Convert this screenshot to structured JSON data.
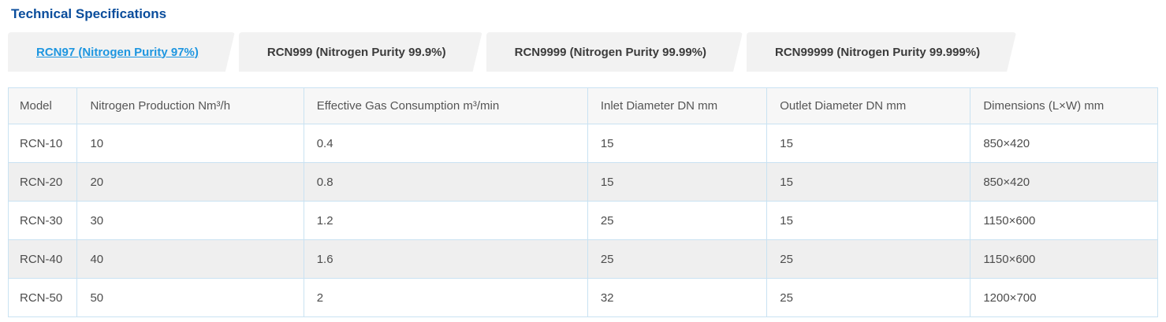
{
  "page": {
    "title": "Technical Specifications"
  },
  "tabs": [
    {
      "label": "RCN97 (Nitrogen Purity 97%)",
      "active": true
    },
    {
      "label": "RCN999 (Nitrogen Purity 99.9%)",
      "active": false
    },
    {
      "label": "RCN9999 (Nitrogen Purity 99.99%)",
      "active": false
    },
    {
      "label": "RCN99999 (Nitrogen Purity 99.999%)",
      "active": false
    }
  ],
  "table": {
    "columns": [
      "Model",
      "Nitrogen Production Nm³/h",
      "Effective Gas Consumption m³/min",
      "Inlet Diameter DN mm",
      "Outlet Diameter DN mm",
      "Dimensions (L×W) mm"
    ],
    "rows": [
      [
        "RCN-10",
        "10",
        "0.4",
        "15",
        "15",
        "850×420"
      ],
      [
        "RCN-20",
        "20",
        "0.8",
        "15",
        "15",
        "850×420"
      ],
      [
        "RCN-30",
        "30",
        "1.2",
        "25",
        "15",
        "1150×600"
      ],
      [
        "RCN-40",
        "40",
        "1.6",
        "25",
        "25",
        "1150×600"
      ],
      [
        "RCN-50",
        "50",
        "2",
        "32",
        "25",
        "1200×700"
      ]
    ]
  },
  "colors": {
    "title_blue": "#0a4d9c",
    "active_tab_link_blue": "#1e96e0",
    "tab_background": "#f2f2f2",
    "tab_text": "#3b3b3b",
    "table_border_blue": "#c9e2f2",
    "header_row_background": "#f7f7f7",
    "alt_row_background": "#efefef",
    "table_text": "#4d4d4d"
  }
}
